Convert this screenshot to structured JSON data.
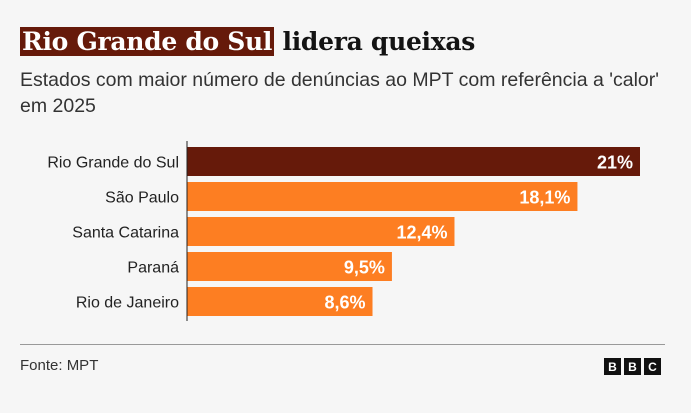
{
  "title": {
    "highlight": "Rio Grande do Sul",
    "rest": " lidera queixas"
  },
  "subtitle": "Estados com maior número de denúncias ao MPT com referência a 'calor' em 2025",
  "source": "Fonte: MPT",
  "logo": [
    "B",
    "B",
    "C"
  ],
  "colors": {
    "highlight": "#661a0a",
    "bar": "#fd7e22"
  },
  "chart_data": {
    "type": "bar",
    "orientation": "horizontal",
    "categories": [
      "Rio Grande do Sul",
      "São Paulo",
      "Santa Catarina",
      "Paraná",
      "Rio de Janeiro"
    ],
    "values": [
      21,
      18.1,
      12.4,
      9.5,
      8.6
    ],
    "labels": [
      "21%",
      "18,1%",
      "12,4%",
      "9,5%",
      "8,6%"
    ],
    "unit": "%",
    "xlim": [
      0,
      21
    ],
    "grid": false
  }
}
